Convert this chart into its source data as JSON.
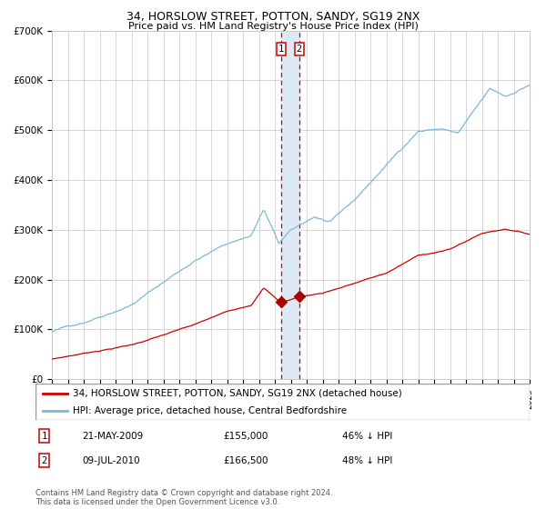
{
  "title1": "34, HORSLOW STREET, POTTON, SANDY, SG19 2NX",
  "title2": "Price paid vs. HM Land Registry's House Price Index (HPI)",
  "legend_line1": "34, HORSLOW STREET, POTTON, SANDY, SG19 2NX (detached house)",
  "legend_line2": "HPI: Average price, detached house, Central Bedfordshire",
  "transaction1_date": "21-MAY-2009",
  "transaction1_price": "£155,000",
  "transaction1_hpi": "46% ↓ HPI",
  "transaction2_date": "09-JUL-2010",
  "transaction2_price": "£166,500",
  "transaction2_hpi": "48% ↓ HPI",
  "footer": "Contains HM Land Registry data © Crown copyright and database right 2024.\nThis data is licensed under the Open Government Licence v3.0.",
  "hpi_color": "#7ab8d9",
  "price_color": "#cc0000",
  "marker_color": "#aa0000",
  "vline_color": "#cc0000",
  "vband_color": "#ddeaf5",
  "grid_color": "#c8c8c8",
  "background_color": "#ffffff",
  "ylim": [
    0,
    700000
  ],
  "yticks": [
    0,
    100000,
    200000,
    300000,
    400000,
    500000,
    600000,
    700000
  ],
  "transaction1_x": 2009.38,
  "transaction2_x": 2010.52,
  "transaction1_y": 155000,
  "transaction2_y": 166500,
  "xmin": 1995,
  "xmax": 2025
}
